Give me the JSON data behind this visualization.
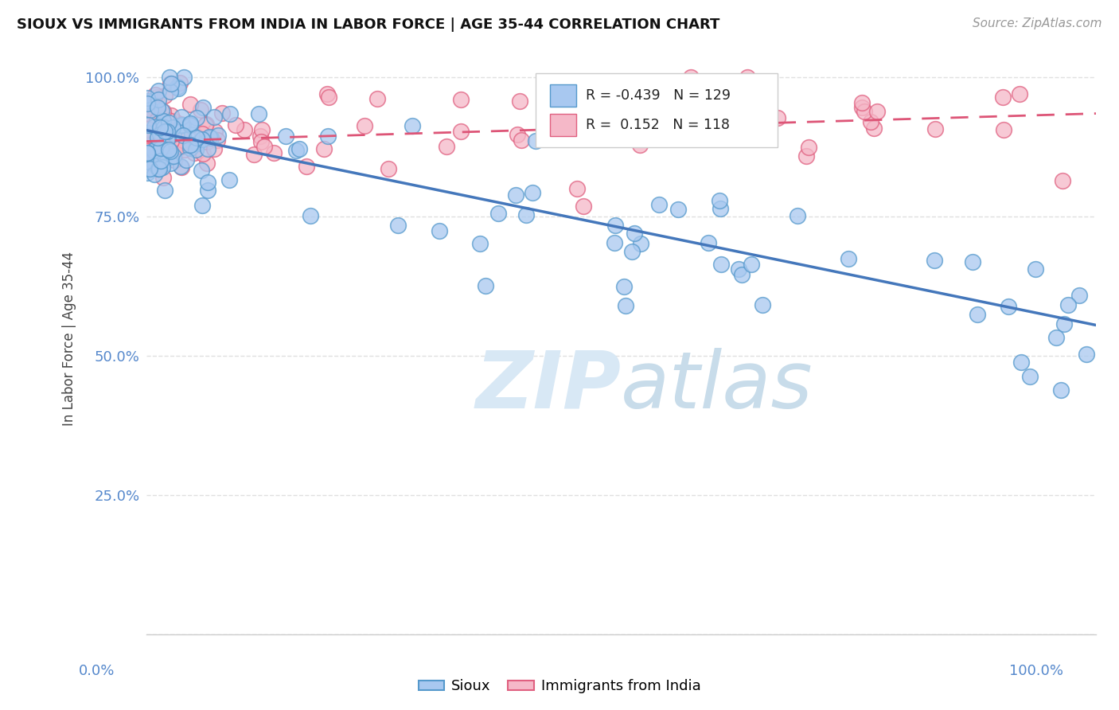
{
  "title": "SIOUX VS IMMIGRANTS FROM INDIA IN LABOR FORCE | AGE 35-44 CORRELATION CHART",
  "source": "Source: ZipAtlas.com",
  "ylabel": "In Labor Force | Age 35-44",
  "xlim": [
    0.0,
    1.0
  ],
  "ylim": [
    0.0,
    1.06
  ],
  "yticks": [
    0.0,
    0.25,
    0.5,
    0.75,
    1.0
  ],
  "ytick_labels": [
    "",
    "25.0%",
    "50.0%",
    "75.0%",
    "100.0%"
  ],
  "legend_r_blue": "-0.439",
  "legend_n_blue": "129",
  "legend_r_pink": "0.152",
  "legend_n_pink": "118",
  "color_blue": "#a8c8f0",
  "color_blue_edge": "#5599cc",
  "color_pink": "#f5b8c8",
  "color_pink_edge": "#e06080",
  "color_blue_line": "#4477bb",
  "color_pink_line": "#dd5577",
  "watermark_color": "#d8e8f5",
  "background_color": "#ffffff",
  "grid_color": "#e0e0e0",
  "title_color": "#111111",
  "source_color": "#999999",
  "axis_label_color": "#5588cc",
  "trend_blue_x0": 0.0,
  "trend_blue_y0": 0.905,
  "trend_blue_x1": 1.0,
  "trend_blue_y1": 0.555,
  "trend_pink_x0": 0.0,
  "trend_pink_y0": 0.885,
  "trend_pink_x1": 1.0,
  "trend_pink_y1": 0.935
}
